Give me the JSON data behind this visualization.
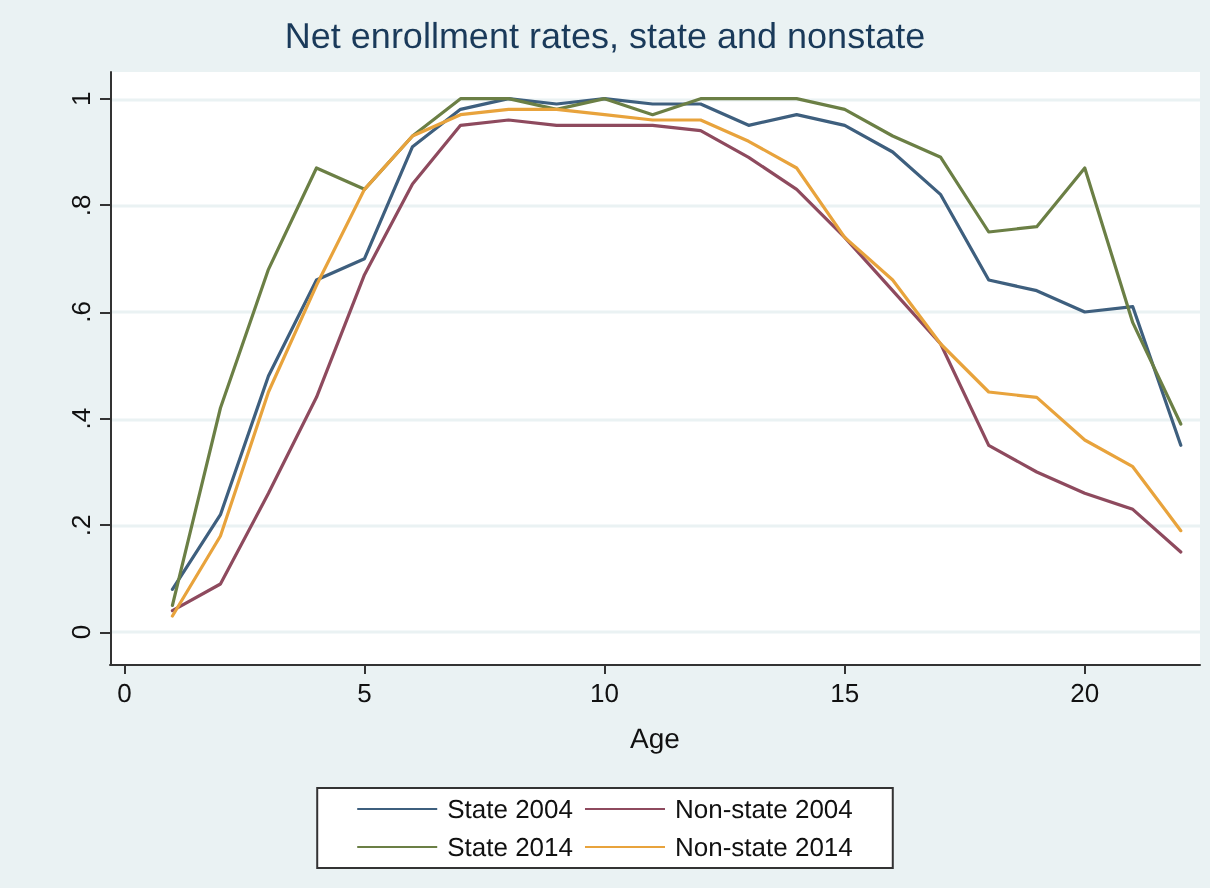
{
  "chart_data": {
    "type": "line",
    "title": "Net enrollment rates, state and nonstate",
    "xlabel": "Age",
    "x": [
      1,
      2,
      3,
      4,
      5,
      6,
      7,
      8,
      9,
      10,
      11,
      12,
      13,
      14,
      15,
      16,
      17,
      18,
      19,
      20,
      21,
      22
    ],
    "series": [
      {
        "name": "State 2004",
        "color": "#3e5f7e",
        "values": [
          0.08,
          0.22,
          0.48,
          0.66,
          0.7,
          0.91,
          0.98,
          1.0,
          0.99,
          1.0,
          0.99,
          0.99,
          0.95,
          0.97,
          0.95,
          0.9,
          0.82,
          0.66,
          0.64,
          0.6,
          0.61,
          0.35
        ]
      },
      {
        "name": "Non-state 2004",
        "color": "#8e4a5e",
        "values": [
          0.04,
          0.09,
          0.26,
          0.44,
          0.67,
          0.84,
          0.95,
          0.96,
          0.95,
          0.95,
          0.95,
          0.94,
          0.89,
          0.83,
          0.74,
          0.64,
          0.54,
          0.35,
          0.3,
          0.26,
          0.23,
          0.15
        ]
      },
      {
        "name": "State 2014",
        "color": "#6b7f45",
        "values": [
          0.05,
          0.42,
          0.68,
          0.87,
          0.83,
          0.93,
          1.0,
          1.0,
          0.98,
          1.0,
          0.97,
          1.0,
          1.0,
          1.0,
          0.98,
          0.93,
          0.89,
          0.75,
          0.76,
          0.87,
          0.58,
          0.39
        ]
      },
      {
        "name": "Non-state 2014",
        "color": "#e8a33c",
        "values": [
          0.03,
          0.18,
          0.45,
          0.65,
          0.83,
          0.93,
          0.97,
          0.98,
          0.98,
          0.97,
          0.96,
          0.96,
          0.92,
          0.87,
          0.74,
          0.66,
          0.54,
          0.45,
          0.44,
          0.36,
          0.31,
          0.19
        ]
      }
    ],
    "xlim": [
      -0.3,
      22.4
    ],
    "xticks": [
      0,
      5,
      10,
      15,
      20
    ],
    "ylim": [
      -0.06,
      1.05
    ],
    "yticks": [
      0,
      {
        "value": 0.2,
        "label": ".2"
      },
      {
        "value": 0.4,
        "label": ".4"
      },
      {
        "value": 0.6,
        "label": ".6"
      },
      {
        "value": 0.8,
        "label": ".8"
      },
      1
    ],
    "grid": "y",
    "legend": "bottom",
    "marker": "none",
    "line_style": "solid"
  }
}
